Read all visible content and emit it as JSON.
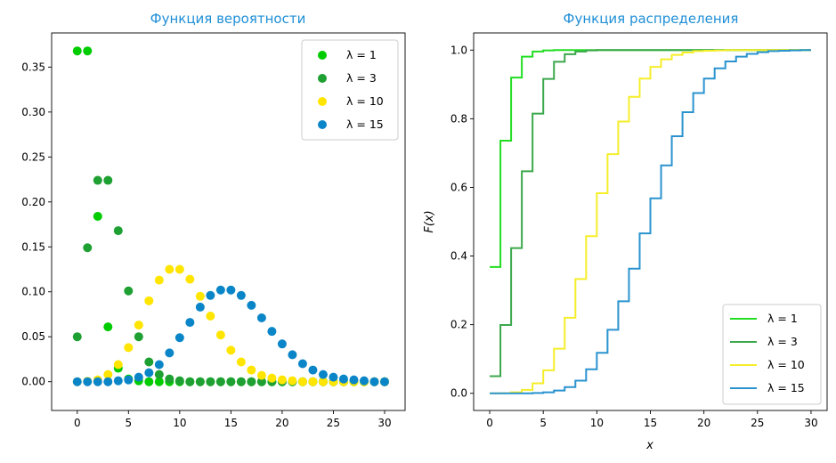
{
  "chart_data": [
    {
      "type": "scatter",
      "title": "Функция вероятности",
      "xlabel": "",
      "ylabel": "",
      "xlim": [
        -2.5,
        32
      ],
      "ylim": [
        -0.032,
        0.388
      ],
      "xticks": [
        "0",
        "5",
        "10",
        "15",
        "20",
        "25",
        "30"
      ],
      "yticks": [
        "0.00",
        "0.05",
        "0.10",
        "0.15",
        "0.20",
        "0.25",
        "0.30",
        "0.35"
      ],
      "legend_position": "top-right",
      "x": [
        0,
        1,
        2,
        3,
        4,
        5,
        6,
        7,
        8,
        9,
        10,
        11,
        12,
        13,
        14,
        15,
        16,
        17,
        18,
        19,
        20,
        21,
        22,
        23,
        24,
        25,
        26,
        27,
        28,
        29,
        30
      ],
      "series": [
        {
          "name": "λ = 1",
          "color": "#00cc00",
          "values": [
            0.368,
            0.368,
            0.184,
            0.061,
            0.015,
            0.003,
            0.001,
            0,
            0,
            0,
            0,
            0,
            0,
            0,
            0,
            0,
            0,
            0,
            0,
            0,
            0,
            0,
            0,
            0,
            0,
            0,
            0,
            0,
            0,
            0,
            0
          ]
        },
        {
          "name": "λ = 3",
          "color": "#1fa032",
          "values": [
            0.05,
            0.149,
            0.224,
            0.224,
            0.168,
            0.101,
            0.05,
            0.022,
            0.008,
            0.003,
            0.001,
            0,
            0,
            0,
            0,
            0,
            0,
            0,
            0,
            0,
            0,
            0,
            0,
            0,
            0,
            0,
            0,
            0,
            0,
            0,
            0
          ]
        },
        {
          "name": "λ = 10",
          "color": "#ffe500",
          "values": [
            0,
            0.0005,
            0.002,
            0.008,
            0.019,
            0.038,
            0.063,
            0.09,
            0.113,
            0.125,
            0.125,
            0.114,
            0.095,
            0.073,
            0.052,
            0.035,
            0.022,
            0.013,
            0.007,
            0.004,
            0.002,
            0.001,
            0,
            0,
            0,
            0,
            0,
            0,
            0,
            0,
            0
          ]
        },
        {
          "name": "λ = 15",
          "color": "#0a86c8",
          "values": [
            0,
            0,
            0,
            0,
            0.001,
            0.002,
            0.005,
            0.01,
            0.019,
            0.032,
            0.049,
            0.066,
            0.083,
            0.096,
            0.102,
            0.102,
            0.096,
            0.085,
            0.071,
            0.056,
            0.042,
            0.03,
            0.02,
            0.013,
            0.008,
            0.005,
            0.003,
            0.002,
            0.001,
            0,
            0
          ]
        }
      ]
    },
    {
      "type": "line",
      "title": "Функция распределения",
      "xlabel": "x",
      "ylabel": "F(x)",
      "xlim": [
        -1.5,
        31.5
      ],
      "ylim": [
        -0.05,
        1.05
      ],
      "xticks": [
        "0",
        "5",
        "10",
        "15",
        "20",
        "25",
        "30"
      ],
      "yticks": [
        "0.0",
        "0.2",
        "0.4",
        "0.6",
        "0.8",
        "1.0"
      ],
      "legend_position": "bottom-right",
      "x": [
        0,
        1,
        2,
        3,
        4,
        5,
        6,
        7,
        8,
        9,
        10,
        11,
        12,
        13,
        14,
        15,
        16,
        17,
        18,
        19,
        20,
        21,
        22,
        23,
        24,
        25,
        26,
        27,
        28,
        29,
        30
      ],
      "series": [
        {
          "name": "λ = 1",
          "color": "#22dd22",
          "values": [
            0.368,
            0.736,
            0.92,
            0.981,
            0.996,
            0.999,
            1,
            1,
            1,
            1,
            1,
            1,
            1,
            1,
            1,
            1,
            1,
            1,
            1,
            1,
            1,
            1,
            1,
            1,
            1,
            1,
            1,
            1,
            1,
            1,
            1
          ]
        },
        {
          "name": "λ = 3",
          "color": "#3ca84c",
          "values": [
            0.05,
            0.199,
            0.423,
            0.647,
            0.815,
            0.916,
            0.966,
            0.988,
            0.996,
            0.999,
            1,
            1,
            1,
            1,
            1,
            1,
            1,
            1,
            1,
            1,
            1,
            1,
            1,
            1,
            1,
            1,
            1,
            1,
            1,
            1,
            1
          ]
        },
        {
          "name": "λ = 10",
          "color": "#f5ee2a",
          "values": [
            0,
            0.0005,
            0.003,
            0.01,
            0.029,
            0.067,
            0.13,
            0.22,
            0.333,
            0.458,
            0.583,
            0.697,
            0.792,
            0.864,
            0.917,
            0.951,
            0.973,
            0.986,
            0.993,
            0.997,
            0.998,
            0.999,
            1,
            1,
            1,
            1,
            1,
            1,
            1,
            1,
            1
          ]
        },
        {
          "name": "λ = 15",
          "color": "#2a93cf",
          "values": [
            0,
            0,
            0,
            0,
            0.001,
            0.003,
            0.008,
            0.018,
            0.037,
            0.07,
            0.118,
            0.185,
            0.268,
            0.363,
            0.466,
            0.568,
            0.664,
            0.749,
            0.819,
            0.875,
            0.917,
            0.947,
            0.967,
            0.981,
            0.989,
            0.994,
            0.997,
            0.998,
            0.999,
            1,
            1
          ]
        }
      ]
    }
  ]
}
